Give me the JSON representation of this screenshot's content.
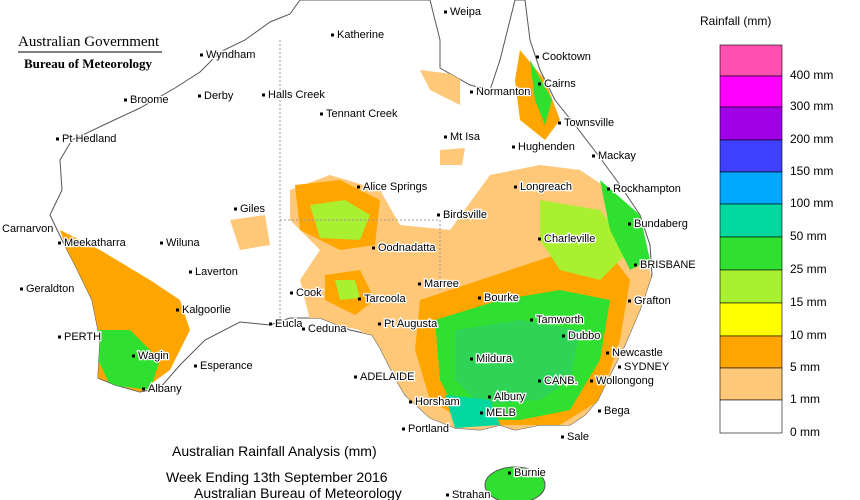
{
  "header": {
    "title": "Australian Government",
    "subtitle": "Bureau of Meteorology"
  },
  "legend": {
    "title": "Rainfall (mm)",
    "items": [
      {
        "label": "400 mm",
        "color": "#ff4fb0"
      },
      {
        "label": "300 mm",
        "color": "#ff00ff"
      },
      {
        "label": "200 mm",
        "color": "#a000e8"
      },
      {
        "label": "150 mm",
        "color": "#4040ff"
      },
      {
        "label": "100 mm",
        "color": "#00a8ff"
      },
      {
        "label": "50 mm",
        "color": "#00d8a0"
      },
      {
        "label": "25 mm",
        "color": "#30e030"
      },
      {
        "label": "15 mm",
        "color": "#a8f030"
      },
      {
        "label": "10 mm",
        "color": "#ffff00"
      },
      {
        "label": "5 mm",
        "color": "#ffa500"
      },
      {
        "label": "1 mm",
        "color": "#ffc878"
      },
      {
        "label": "0 mm",
        "color": "#ffffff"
      }
    ]
  },
  "places": [
    "Weipa",
    "Katherine",
    "Cooktown",
    "Wyndham",
    "Cairns",
    "Derby",
    "Halls Creek",
    "Normanton",
    "Broome",
    "Tennant Creek",
    "Townsville",
    "Pt Hedland",
    "Mt Isa",
    "Hughenden",
    "Mackay",
    "Alice Springs",
    "Longreach",
    "Rockhampton",
    "Giles",
    "Birdsville",
    "Carnarvon",
    "Bundaberg",
    "Meekatharra",
    "Wiluna",
    "Oodnadatta",
    "Charleville",
    "BRISBANE",
    "Laverton",
    "Geraldton",
    "Marree",
    "Cook",
    "Tarcoola",
    "Bourke",
    "Grafton",
    "Kalgoorlie",
    "Pt Augusta",
    "Eucla",
    "Ceduna",
    "Tamworth",
    "Dubbo",
    "PERTH",
    "Wagin",
    "Newcastle",
    "SYDNEY",
    "Mildura",
    "Esperance",
    "ADELAIDE",
    "Wollongong",
    "CANB.",
    "Albany",
    "Albury",
    "Horsham",
    "MELB",
    "Bega",
    "Portland",
    "Sale",
    "Burnie",
    "Strahan"
  ],
  "caption": [
    "Australian Rainfall Analysis (mm)",
    "Week Ending 13th September 2016",
    "Australian Bureau of Meteorology"
  ]
}
